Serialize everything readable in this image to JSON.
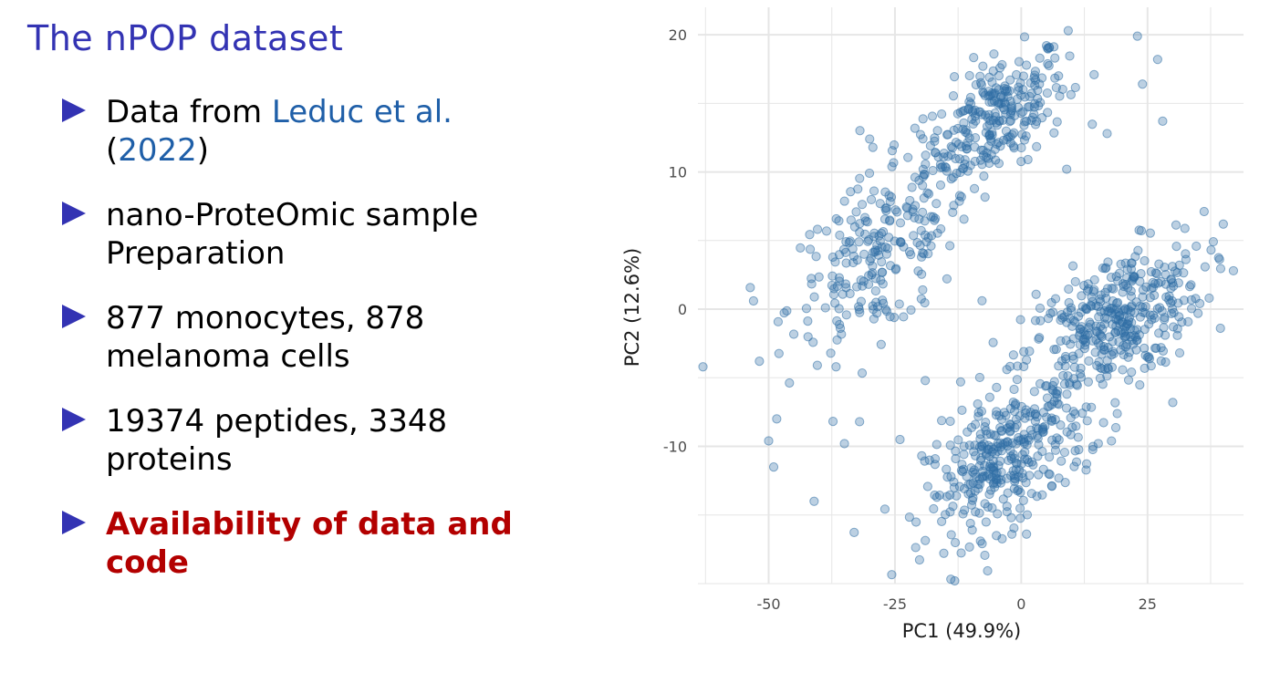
{
  "slide": {
    "title": "The nPOP dataset",
    "bullets": [
      {
        "parts": [
          {
            "text": "Data from ",
            "style": "normal"
          },
          {
            "text": "Leduc et al.",
            "style": "cite"
          },
          {
            "text": " ",
            "style": "normal"
          },
          {
            "text": "(",
            "style": "normal"
          },
          {
            "text": "2022",
            "style": "cite"
          },
          {
            "text": ")",
            "style": "normal"
          }
        ]
      },
      {
        "parts": [
          {
            "text": "nano-ProteOmic sample Preparation",
            "style": "normal"
          }
        ]
      },
      {
        "parts": [
          {
            "text": "877 monocytes, 878 melanoma cells",
            "style": "normal"
          }
        ]
      },
      {
        "parts": [
          {
            "text": "19374 peptides, 3348 proteins",
            "style": "normal"
          }
        ]
      },
      {
        "parts": [
          {
            "text": "Availability of data and code",
            "style": "bold-red"
          }
        ]
      }
    ]
  },
  "colors": {
    "title": "#3333b3",
    "bullet_marker": "#3333b3",
    "citation": "#1f5fa8",
    "emphasis": "#b30000",
    "point": "#2e6da4",
    "grid": "#e6e6e6"
  },
  "chart_data": {
    "type": "scatter",
    "title": "",
    "xlabel": "PC1 (49.9%)",
    "ylabel": "PC2 (12.6%)",
    "xlim": [
      -64,
      44
    ],
    "ylim": [
      -20,
      22
    ],
    "xticks": [
      -50,
      -25,
      0,
      25
    ],
    "yticks": [
      -10,
      0,
      10,
      20
    ],
    "grid": true,
    "legend": "none",
    "clusters": [
      {
        "name": "",
        "center": [
          -5,
          14
        ],
        "spread": [
          7,
          2.2
        ],
        "n": 260
      },
      {
        "name": "",
        "center": [
          -28,
          4
        ],
        "spread": [
          9,
          3.2
        ],
        "n": 230
      },
      {
        "name": "",
        "center": [
          18,
          -1
        ],
        "spread": [
          9,
          2.6
        ],
        "n": 380
      },
      {
        "name": "",
        "center": [
          -3,
          -11
        ],
        "spread": [
          8,
          2.5
        ],
        "n": 340
      }
    ],
    "outliers": [
      [
        -63,
        -4.2
      ],
      [
        -50,
        -9.6
      ],
      [
        -49,
        -11.5
      ],
      [
        -41,
        -14
      ],
      [
        -53,
        0.6
      ],
      [
        -32,
        -8.2
      ],
      [
        -35,
        -9.8
      ],
      [
        -24,
        -9.5
      ],
      [
        -19,
        -5.2
      ],
      [
        -12,
        -5.3
      ],
      [
        23,
        19.9
      ],
      [
        27,
        18.2
      ],
      [
        24,
        16.4
      ],
      [
        28,
        13.7
      ],
      [
        17,
        12.8
      ],
      [
        9,
        10.2
      ],
      [
        40,
        6.2
      ],
      [
        42,
        2.8
      ],
      [
        25,
        -3.5
      ],
      [
        30,
        -6.8
      ],
      [
        -17,
        11.4
      ],
      [
        -30,
        12.4
      ],
      [
        5,
        19.2
      ],
      [
        -8,
        16.5
      ]
    ]
  }
}
